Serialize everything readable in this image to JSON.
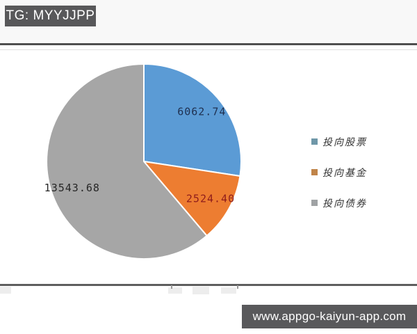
{
  "header": {
    "badge": "TG: MYYJJPP"
  },
  "watermark": {
    "url": "www.appgo-kaiyun-app.com"
  },
  "chart_data": {
    "type": "pie",
    "title": "",
    "start_angle_deg": -90,
    "direction": "clockwise",
    "legend_position": "right",
    "slices": [
      {
        "label": "投向股票",
        "value": 6062.74,
        "percent": 27.4,
        "color": "#5b9bd5",
        "label_color": "#1f3050"
      },
      {
        "label": "投向基金",
        "value": 2524.4,
        "percent": 11.4,
        "color": "#ed7d31",
        "label_color": "#8e1c1c"
      },
      {
        "label": "投向债券",
        "value": 13543.68,
        "percent": 61.2,
        "color": "#a6a6a6",
        "label_color": "#262626"
      }
    ],
    "legend": [
      {
        "label": "投向股票",
        "swatch_color": "#6f97a8"
      },
      {
        "label": "投向基金",
        "swatch_color": "#c08449"
      },
      {
        "label": "投向债券",
        "swatch_color": "#9fa2a4"
      }
    ]
  }
}
